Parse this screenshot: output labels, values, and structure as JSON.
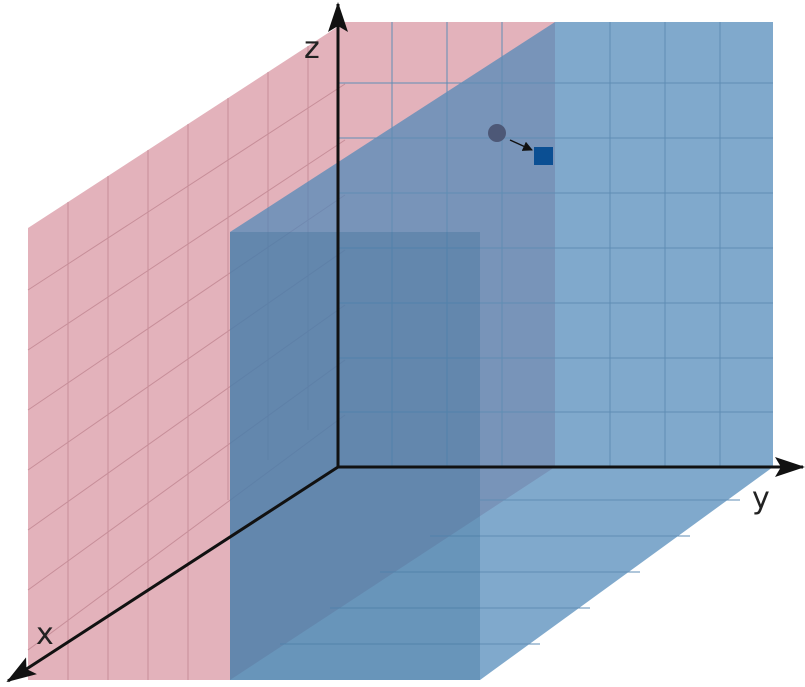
{
  "axes": {
    "x": "x",
    "y": "y",
    "z": "z"
  }
}
